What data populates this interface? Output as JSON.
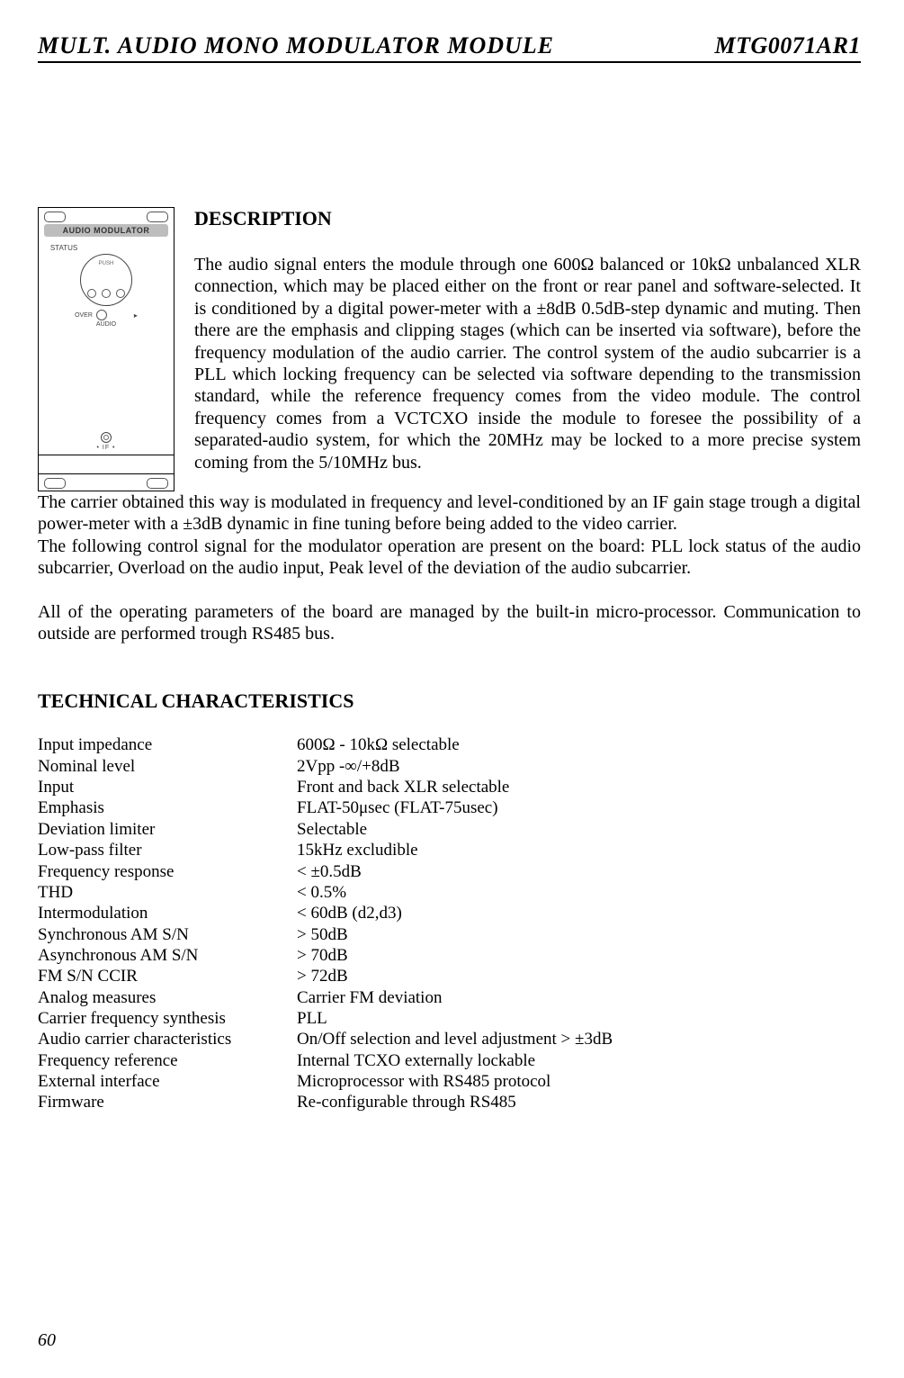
{
  "header": {
    "left": "MULT.  AUDIO  MONO  MODULATOR  MODULE",
    "right": "MTG0071AR1"
  },
  "panel": {
    "title_bar": "AUDIO MODULATOR",
    "status_label": "STATUS",
    "push_label": "PUSH",
    "over_label": "OVER",
    "audio_caption": "AUDIO",
    "if_label": "IF"
  },
  "description": {
    "heading": "DESCRIPTION",
    "para_side": "The audio signal enters the module through one 600Ω balanced or 10kΩ unbalanced XLR connection, which may be placed either on the front or rear panel and software-selected. It is conditioned by a digital power-meter with a ±8dB 0.5dB-step dynamic and muting. Then there are the emphasis and clipping stages (which can be inserted via software), before the frequency modulation of the audio carrier.\nThe control system of the audio subcarrier is a PLL which locking frequency can be selected via software depending to the transmission standard, while the reference frequency comes from the video module.\nThe control frequency comes from a VCTCXO inside the module to foresee the possibility of a separated-audio system, for which the 20MHz may be locked to a more precise system coming from the 5/10MHz bus.",
    "para_full_1": "The carrier obtained this way is modulated in frequency and level-conditioned by an IF gain stage trough a digital power-meter with a ±3dB dynamic in fine tuning before being added to the video carrier.",
    "para_full_2": "The following control signal for the modulator operation are present on the board: PLL lock status of the audio subcarrier, Overload on the audio input, Peak level of the deviation of the audio subcarrier.",
    "para_full_3": "All of the operating parameters of the board are managed by the  built-in micro-processor. Communication to outside are performed trough RS485 bus."
  },
  "tech": {
    "heading": "TECHNICAL CHARACTERISTICS",
    "rows": [
      {
        "label": "Input impedance",
        "value": "600Ω - 10kΩ selectable"
      },
      {
        "label": "Nominal level",
        "value": "2Vpp -∞/+8dB"
      },
      {
        "label": "Input",
        "value": "Front and back XLR selectable"
      },
      {
        "label": "Emphasis",
        "value": "FLAT-50μsec (FLAT-75usec)"
      },
      {
        "label": "Deviation limiter",
        "value": " Selectable"
      },
      {
        "label": "Low-pass filter",
        "value": "15kHz excludible"
      },
      {
        "label": "Frequency  response",
        "value": "< ±0.5dB"
      },
      {
        "label": "THD",
        "value": "< 0.5%"
      },
      {
        "label": "Intermodulation",
        "value": "< 60dB (d2,d3)"
      },
      {
        "label": "Synchronous  AM  S/N",
        "value": "> 50dB"
      },
      {
        "label": "Asynchronous  AM  S/N",
        "value": "> 70dB"
      },
      {
        "label": "FM S/N CCIR",
        "value": "> 72dB"
      },
      {
        "label": "Analog  measures",
        "value": "Carrier FM deviation"
      },
      {
        "label": "Carrier frequency synthesis",
        "value": "PLL"
      },
      {
        "label": "Audio carrier characteristics",
        "value": "On/Off selection and level adjustment > ±3dB"
      },
      {
        "label": "Frequency reference",
        "value": "Internal TCXO externally lockable"
      },
      {
        "label": "External interface",
        "value": "Microprocessor with RS485 protocol"
      },
      {
        "label": "Firmware",
        "value": "Re-configurable through RS485"
      }
    ]
  },
  "page_number": "60"
}
